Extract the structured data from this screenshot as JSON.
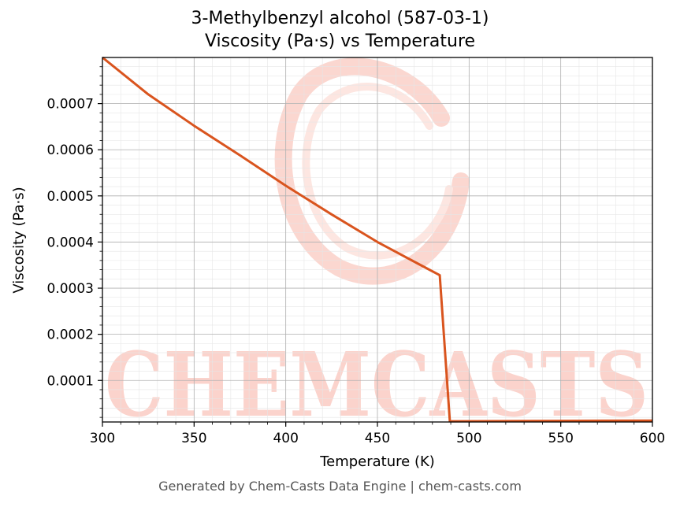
{
  "chart_data": {
    "type": "line",
    "title": "3-Methylbenzyl alcohol (587-03-1)",
    "subtitle": "Viscosity (Pa·s) vs Temperature",
    "xlabel": "Temperature (K)",
    "ylabel": "Viscosity (Pa·s)",
    "xlim": [
      300,
      600
    ],
    "ylim": [
      1e-05,
      0.0008
    ],
    "x_ticks": [
      300,
      350,
      400,
      450,
      500,
      550,
      600
    ],
    "x_tick_labels": [
      "300",
      "350",
      "400",
      "450",
      "500",
      "550",
      "600"
    ],
    "y_ticks": [
      0.0001,
      0.0002,
      0.0003,
      0.0004,
      0.0005,
      0.0006,
      0.0007
    ],
    "y_tick_labels": [
      "0.0001",
      "0.0002",
      "0.0003",
      "0.0004",
      "0.0005",
      "0.0006",
      "0.0007"
    ],
    "grid": true,
    "series": [
      {
        "color": "#d9541e",
        "x": [
          300,
          325,
          350,
          375,
          400,
          425,
          450,
          475,
          484,
          489.5,
          600
        ],
        "y": [
          0.0008,
          0.00072,
          0.000652,
          0.000588,
          0.000522,
          0.00046,
          0.0004,
          0.000347,
          0.000328,
          1.15e-05,
          1.3e-05
        ]
      }
    ]
  },
  "watermark": {
    "text": "CHEMCASTS",
    "color": "#fbd3cc"
  },
  "footer": "Generated by Chem-Casts Data Engine | chem-casts.com"
}
